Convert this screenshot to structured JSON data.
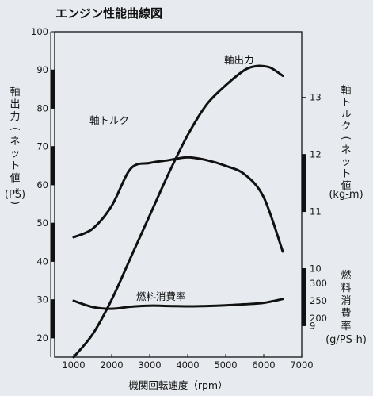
{
  "chart_data": {
    "type": "line",
    "title": "エンジン性能曲線図",
    "xlabel": "機関回転速度（rpm）",
    "xlim": [
      500,
      7000
    ],
    "xticks": [
      1000,
      2000,
      3000,
      4000,
      5000,
      6000,
      7000
    ],
    "axes": {
      "power": {
        "label": "軸出力(ネット値*)",
        "unit": "(PS)",
        "lim": [
          15,
          100
        ],
        "ticks": [
          20,
          30,
          40,
          50,
          60,
          70,
          80,
          90,
          100
        ]
      },
      "torque": {
        "label": "軸トルク(ネット値)",
        "unit": "(kg-m)",
        "lim": [
          8.45,
          14.15
        ],
        "ticks": [
          9,
          10,
          11,
          12,
          13
        ]
      },
      "fuel": {
        "label": "燃料消費率",
        "unit": "(g/PS-h)",
        "ticks": [
          200,
          250,
          300
        ]
      }
    },
    "series": [
      {
        "name": "軸出力",
        "axis": "power",
        "x": [
          1000,
          1500,
          2000,
          2500,
          3000,
          3500,
          4000,
          4500,
          5000,
          5500,
          5800,
          6000,
          6200,
          6500
        ],
        "values": [
          15,
          21,
          30,
          41,
          52,
          63,
          73,
          81,
          86,
          90,
          91,
          91,
          90.5,
          88.5
        ]
      },
      {
        "name": "軸トルク",
        "axis": "torque",
        "x": [
          1000,
          1500,
          2000,
          2500,
          3000,
          3500,
          4000,
          4500,
          5000,
          5500,
          6000,
          6500
        ],
        "values": [
          10.55,
          10.7,
          11.1,
          11.75,
          11.85,
          11.9,
          11.95,
          11.9,
          11.8,
          11.65,
          11.25,
          10.3
        ]
      },
      {
        "name": "燃料消費率",
        "axis": "fuel",
        "x": [
          1000,
          1500,
          2000,
          2500,
          3000,
          3500,
          4000,
          4500,
          5000,
          5500,
          6000,
          6500
        ],
        "values": [
          250,
          232,
          227,
          233,
          236,
          235,
          234,
          235,
          237,
          240,
          244,
          255
        ]
      }
    ],
    "grid": false
  }
}
